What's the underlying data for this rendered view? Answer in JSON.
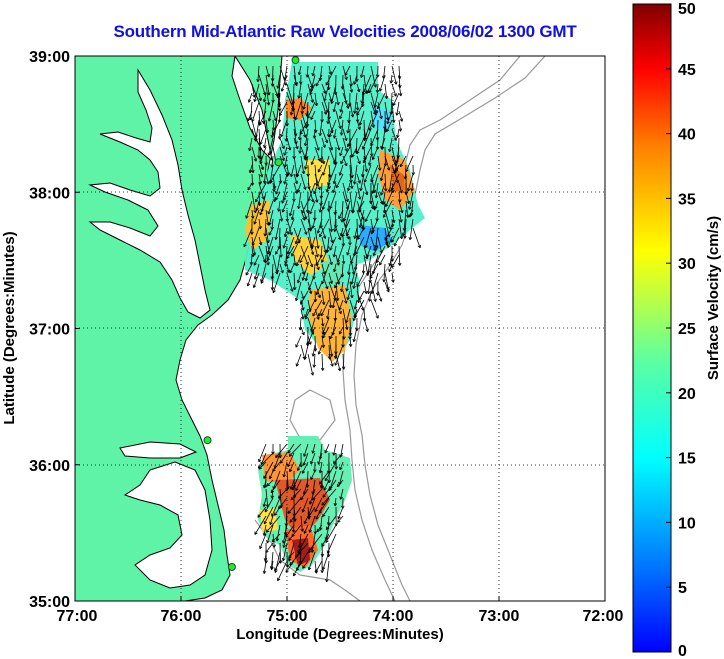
{
  "title": "Southern Mid-Atlantic Raw Velocities 2008/06/02 1300 GMT",
  "map": {
    "xlabel": "Longitude (Degrees:Minutes)",
    "ylabel": "Latitude (Degrees:Minutes)",
    "x_ticks": [
      "77:00",
      "76:00",
      "75:00",
      "74:00",
      "73:00",
      "72:00"
    ],
    "y_ticks": [
      "39:00",
      "38:00",
      "37:00",
      "36:00",
      "35:00"
    ],
    "xlim": [
      -77,
      -72
    ],
    "ylim": [
      35,
      39
    ],
    "land_color": "#5ef3a6"
  },
  "colorbar": {
    "label": "Surface Velocity (cm/s)",
    "ticks": [
      "50",
      "45",
      "40",
      "35",
      "30",
      "25",
      "20",
      "15",
      "10",
      "5",
      "0"
    ],
    "range": [
      0,
      50
    ]
  },
  "station_markers": [
    {
      "lon": -74.92,
      "lat": 38.97
    },
    {
      "lon": -75.08,
      "lat": 38.22
    },
    {
      "lon": -75.75,
      "lat": 36.18
    },
    {
      "lon": -75.52,
      "lat": 35.25
    }
  ]
}
